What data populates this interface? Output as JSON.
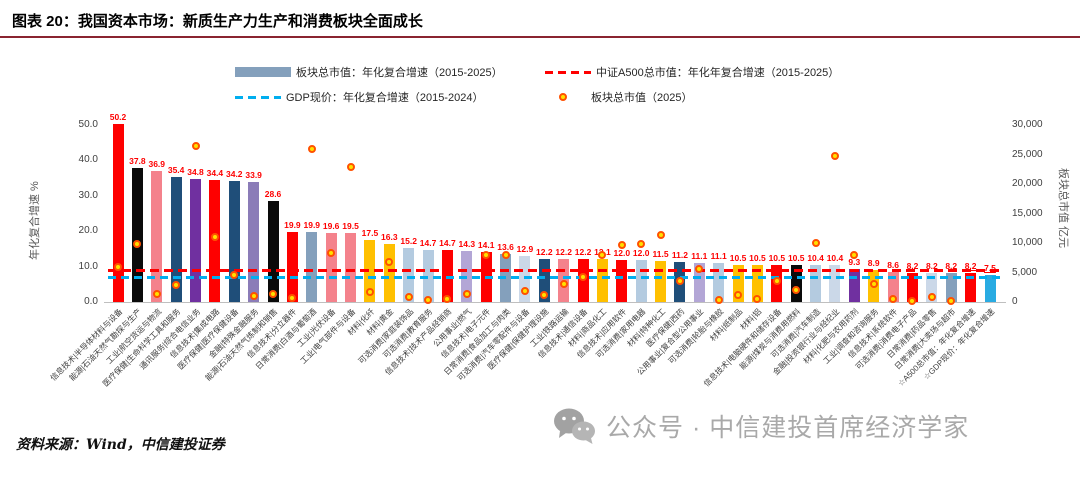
{
  "title": "图表 20：我国资本市场：新质生产力生产和消费板块全面成长",
  "footer": {
    "source": "资料来源：Wind，中信建投证券"
  },
  "watermark": {
    "text": "公众号 · 中信建投首席经济学家"
  },
  "legend": [
    {
      "type": "bar",
      "color": "#84a0bc",
      "label": "板块总市值：年化复合增速（2015-2025）"
    },
    {
      "type": "dash",
      "color": "#fe0000",
      "label": "中证A500总市值：年化年复合增速（2015-2025）"
    },
    {
      "type": "dash",
      "color": "#00aeef",
      "label": "GDP现价：年化复合增速（2015-2024）"
    },
    {
      "type": "dot",
      "color": "#ffe100",
      "ring": "#ff5100",
      "label": "板块总市值（2025）"
    }
  ],
  "chart_data": {
    "type": "bar",
    "title": "我国资本市场：新质生产力生产和消费板块全面成长",
    "left_axis": {
      "label": "年化复合增速 %",
      "min": 0,
      "max": 50,
      "ticks": [
        "0.0",
        "10.0",
        "20.0",
        "30.0",
        "40.0",
        "50.0"
      ]
    },
    "right_axis": {
      "label": "板块总市值 亿元",
      "min": 0,
      "max": 30000,
      "ticks": [
        "0",
        "5,000",
        "10,000",
        "15,000",
        "20,000",
        "25,000",
        "30,000"
      ]
    },
    "benchmarks": {
      "a500_cagr_pct": 8.2,
      "gdp_cagr_pct": 7.5
    },
    "grid": false,
    "legend_position": "top",
    "palette": {
      "red": "#fe0000",
      "black": "#0a0a0a",
      "salmon": "#f4828c",
      "navy": "#1f4e79",
      "purple": "#7030a0",
      "mauve": "#8b7cb8",
      "slate": "#84a0bc",
      "amber": "#ffc000",
      "lightblue": "#b4cbe0",
      "lightgray": "#cbd8e8",
      "lightpurple": "#b3a6d6",
      "cyan": "#29abe2"
    },
    "series_note": "bars = 年化复合增速(左轴%), dots = 板块总市值2025(右轴亿元, 估读)",
    "categories": [
      {
        "label": "信息技术|半导体材料与设备",
        "cagr": 50.2,
        "color": "red",
        "mcap": 5900
      },
      {
        "label": "能源|石油天然气勘探与生产",
        "cagr": 37.8,
        "color": "black",
        "mcap": 9800
      },
      {
        "label": "工业|航空货运与物流",
        "cagr": 36.9,
        "color": "salmon",
        "mcap": 1300
      },
      {
        "label": "医疗保健|生命科学工具和服务",
        "cagr": 35.4,
        "color": "navy",
        "mcap": 2900
      },
      {
        "label": "通讯服务|综合电信业务",
        "cagr": 34.8,
        "color": "purple",
        "mcap": 26400
      },
      {
        "label": "信息技术|集成电路",
        "cagr": 34.4,
        "color": "red",
        "mcap": 11000
      },
      {
        "label": "医疗保健|医疗保健设备",
        "cagr": 34.2,
        "color": "navy",
        "mcap": 4500
      },
      {
        "label": "金融|特殊金融服务",
        "cagr": 33.9,
        "color": "mauve",
        "mcap": 1000
      },
      {
        "label": "能源|石油天然气炼制和销售",
        "cagr": 28.6,
        "color": "black",
        "mcap": 1340
      },
      {
        "label": "信息技术|分立器件",
        "cagr": 19.9,
        "color": "red",
        "mcap": 670
      },
      {
        "label": "日常消费|白酒与葡萄酒",
        "cagr": 19.9,
        "color": "slate",
        "mcap": 26000
      },
      {
        "label": "工业|光伏设备",
        "cagr": 19.6,
        "color": "salmon",
        "mcap": 8380
      },
      {
        "label": "工业|电气部件与设备",
        "cagr": 19.5,
        "color": "salmon",
        "mcap": 22800
      },
      {
        "label": "材料|化纤",
        "cagr": 17.5,
        "color": "amber",
        "mcap": 1680
      },
      {
        "label": "材料|黄金",
        "cagr": 16.3,
        "color": "amber",
        "mcap": 6700
      },
      {
        "label": "可选消费|家庭装饰品",
        "cagr": 15.2,
        "color": "lightblue",
        "mcap": 840
      },
      {
        "label": "可选消费|教育服务",
        "cagr": 14.7,
        "color": "lightblue",
        "mcap": 340
      },
      {
        "label": "信息技术|技术产品经销商",
        "cagr": 14.7,
        "color": "red",
        "mcap": 500
      },
      {
        "label": "公用事业|燃气",
        "cagr": 14.3,
        "color": "lightpurple",
        "mcap": 1340
      },
      {
        "label": "信息技术|电子元件",
        "cagr": 14.1,
        "color": "red",
        "mcap": 8000
      },
      {
        "label": "日常消费|食品加工与肉类",
        "cagr": 13.6,
        "color": "slate",
        "mcap": 8000
      },
      {
        "label": "可选消费|汽车零配件与设备",
        "cagr": 12.9,
        "color": "lightgray",
        "mcap": 1850
      },
      {
        "label": "医疗保健|保健护理设施",
        "cagr": 12.2,
        "color": "navy",
        "mcap": 1200
      },
      {
        "label": "工业|铁路运输",
        "cagr": 12.2,
        "color": "salmon",
        "mcap": 3000
      },
      {
        "label": "信息技术|通信设备",
        "cagr": 12.2,
        "color": "red",
        "mcap": 4200
      },
      {
        "label": "材料|商品化工",
        "cagr": 12.1,
        "color": "amber",
        "mcap": 7900
      },
      {
        "label": "信息技术|应用软件",
        "cagr": 12.0,
        "color": "red",
        "mcap": 9700
      },
      {
        "label": "可选消费|家用电器",
        "cagr": 12.0,
        "color": "lightblue",
        "mcap": 9900
      },
      {
        "label": "材料|特种化工",
        "cagr": 11.5,
        "color": "amber",
        "mcap": 11400
      },
      {
        "label": "医疗保健|西药",
        "cagr": 11.2,
        "color": "navy",
        "mcap": 3520
      },
      {
        "label": "公用事业|复合型公用事业",
        "cagr": 11.1,
        "color": "lightpurple",
        "mcap": 5600
      },
      {
        "label": "可选消费|轮胎与橡胶",
        "cagr": 11.1,
        "color": "lightblue",
        "mcap": 400
      },
      {
        "label": "材料|纸制品",
        "cagr": 10.5,
        "color": "amber",
        "mcap": 1170
      },
      {
        "label": "材料|铝",
        "cagr": 10.5,
        "color": "amber",
        "mcap": 500
      },
      {
        "label": "信息技术|电脑硬件和储存设备",
        "cagr": 10.5,
        "color": "red",
        "mcap": 3500
      },
      {
        "label": "能源|煤炭与消费用燃料",
        "cagr": 10.5,
        "color": "black",
        "mcap": 2000
      },
      {
        "label": "可选消费|汽车制造",
        "cagr": 10.4,
        "color": "lightblue",
        "mcap": 10000
      },
      {
        "label": "金融|投资银行业与经纪业",
        "cagr": 10.4,
        "color": "lightgray",
        "mcap": 24800
      },
      {
        "label": "材料|化肥与农用药剂",
        "cagr": 9.3,
        "color": "purple",
        "mcap": 8000
      },
      {
        "label": "工业|调查和咨询服务",
        "cagr": 8.9,
        "color": "amber",
        "mcap": 3000
      },
      {
        "label": "信息技术|系统软件",
        "cagr": 8.6,
        "color": "salmon",
        "mcap": 500
      },
      {
        "label": "可选消费|消费电子产品",
        "cagr": 8.2,
        "color": "red",
        "mcap": 250
      },
      {
        "label": "日常消费|药品零售",
        "cagr": 8.2,
        "color": "lightgray",
        "mcap": 840
      },
      {
        "label": "日常消费|大卖场与超市",
        "cagr": 8.2,
        "color": "slate",
        "mcap": 250
      },
      {
        "label": "☆A500总市值：年化复合增速",
        "cagr": 8.2,
        "color": "red",
        "mcap": null,
        "ul": true
      },
      {
        "label": "☆GDP现价：年化复合增速",
        "cagr": 7.5,
        "color": "cyan",
        "mcap": null,
        "ul": true
      }
    ]
  }
}
